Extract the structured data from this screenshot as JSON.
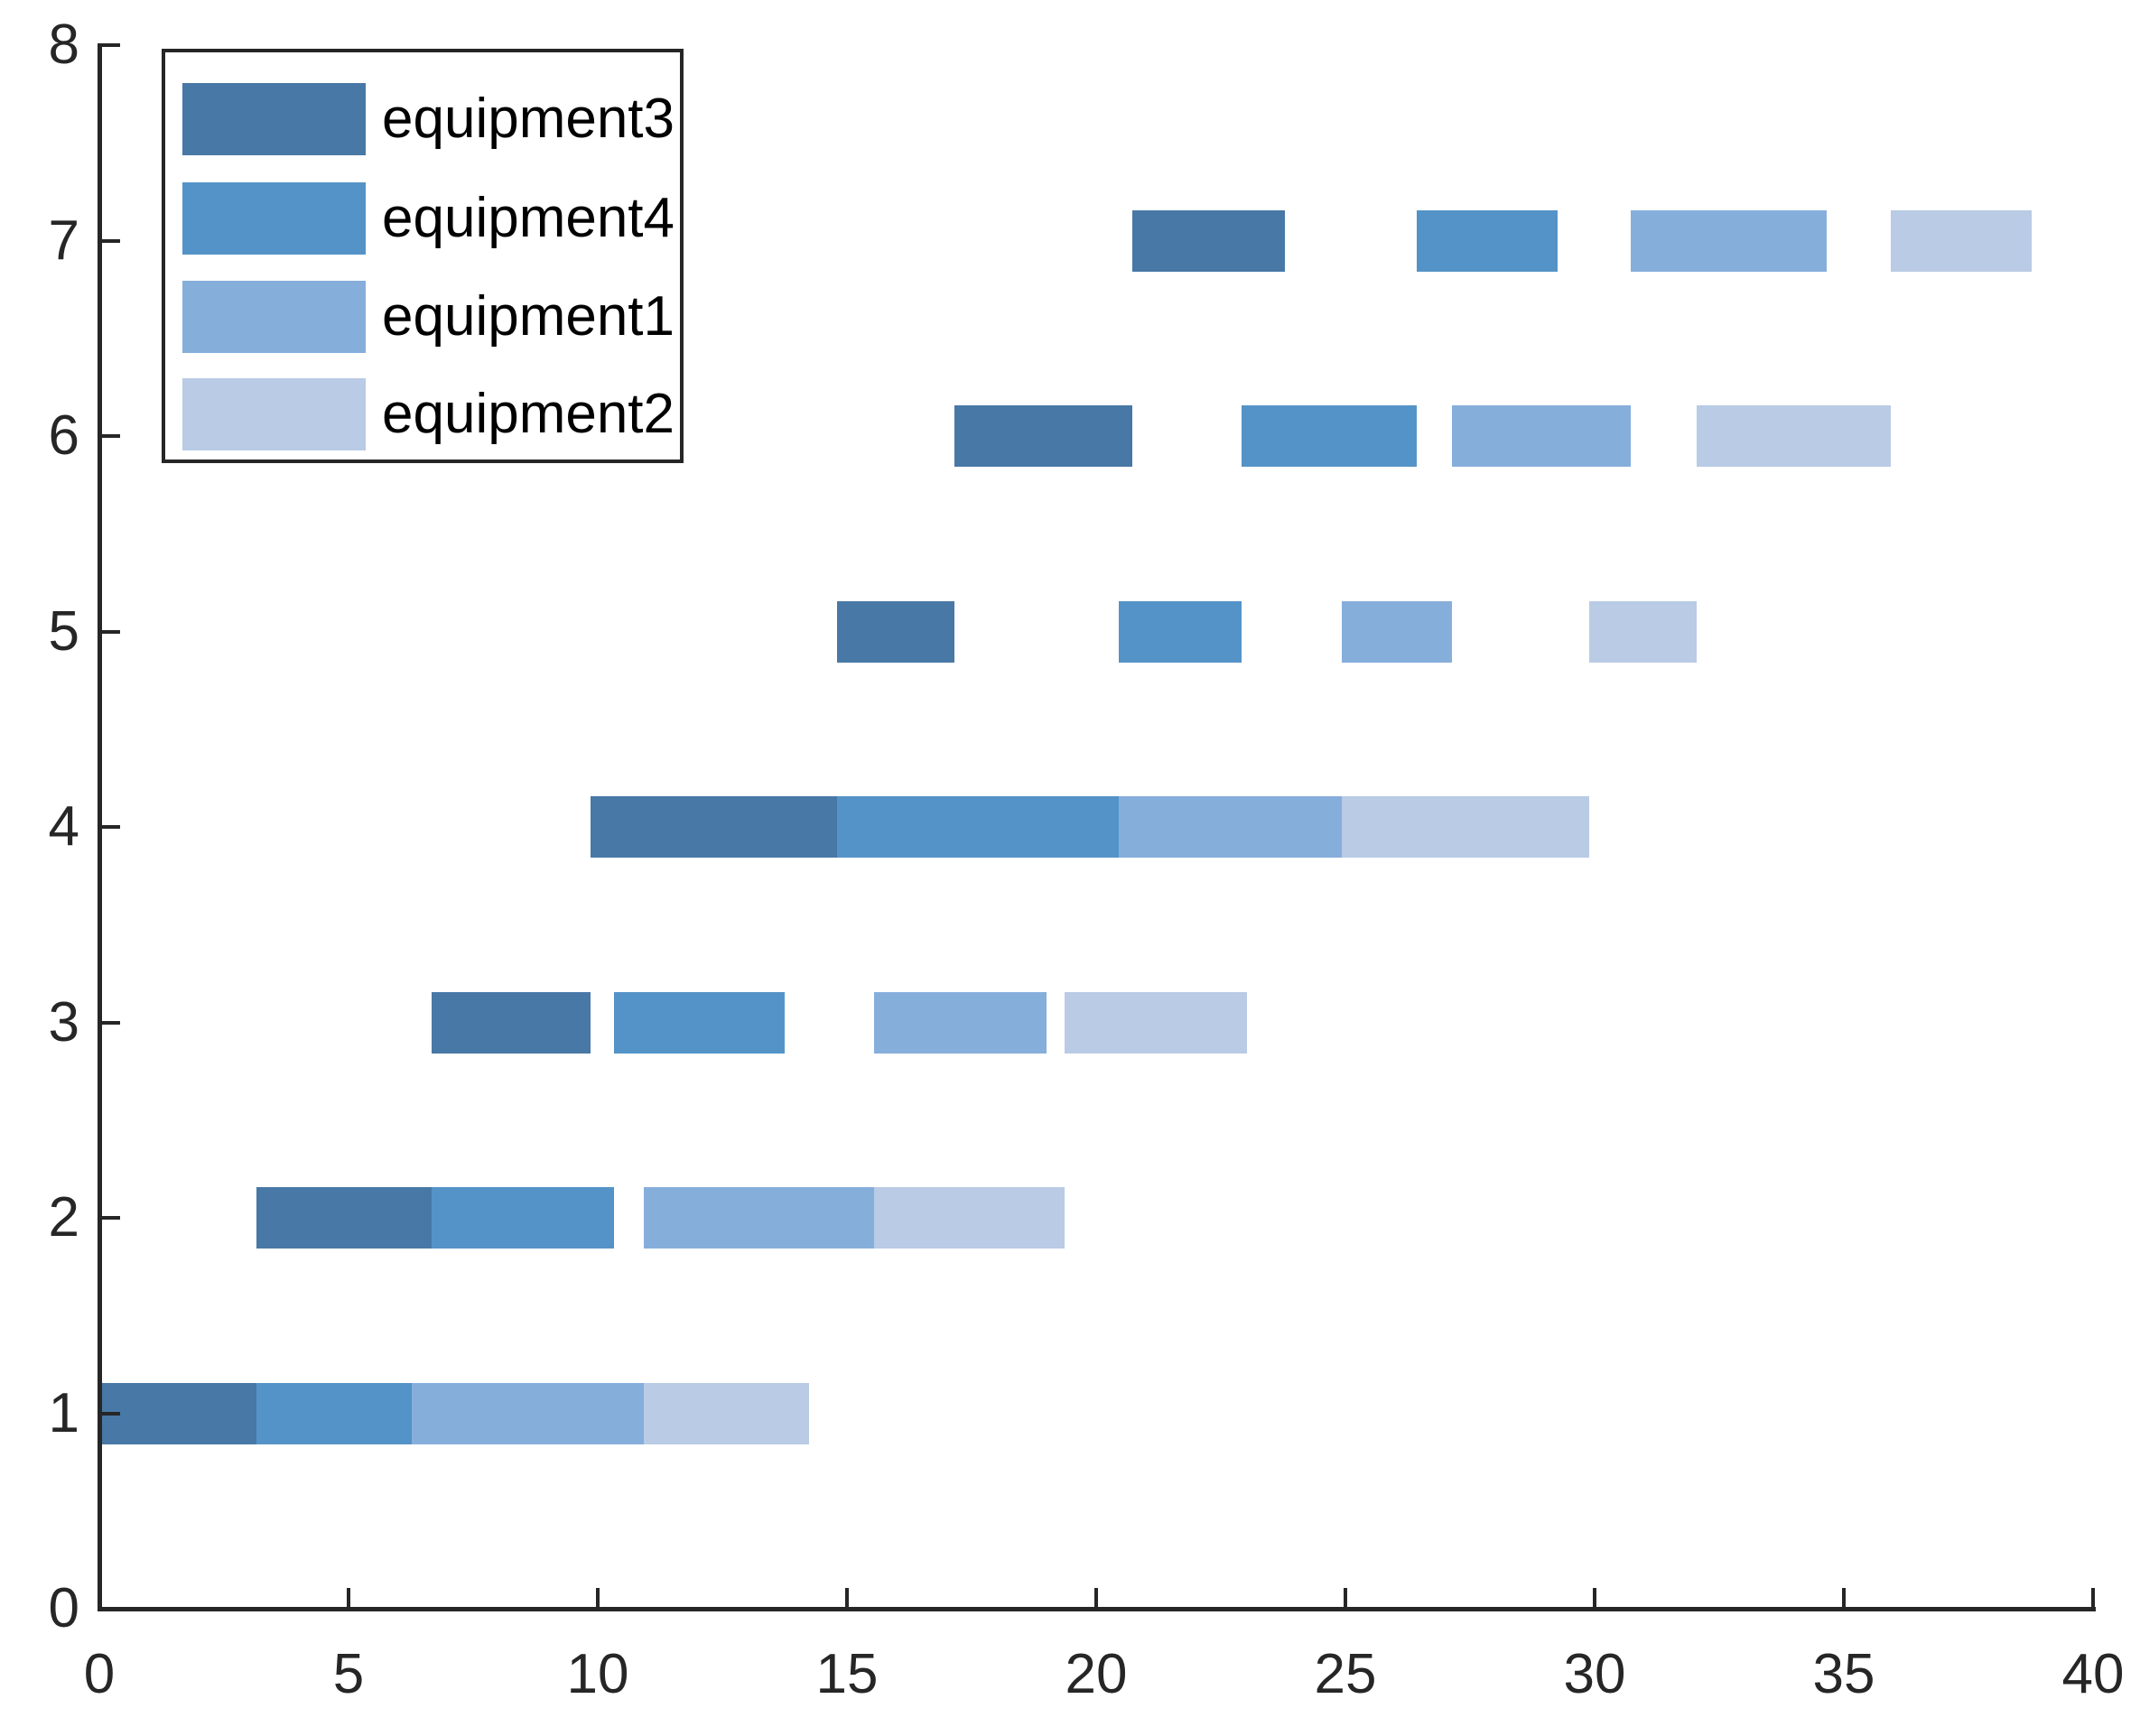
{
  "figure": {
    "background": "#ffffff"
  },
  "axes": {
    "line_color": "#262626",
    "tick_label_color": "#262626",
    "x": {
      "min": 0,
      "max": 40,
      "ticks": [
        "0",
        "5",
        "10",
        "15",
        "20",
        "25",
        "30",
        "35",
        "40"
      ]
    },
    "y": {
      "min": 0,
      "max": 8,
      "ticks": [
        "0",
        "1",
        "2",
        "3",
        "4",
        "5",
        "6",
        "7",
        "8"
      ]
    }
  },
  "legend": {
    "border_color": "#262626",
    "entries": [
      {
        "label": "equipment3",
        "color": "#4878A6"
      },
      {
        "label": "equipment4",
        "color": "#5493C8"
      },
      {
        "label": "equipment1",
        "color": "#86AEDB"
      },
      {
        "label": "equipment2",
        "color": "#B9CBE5"
      }
    ]
  },
  "chart_data": {
    "type": "gantt",
    "title": "",
    "xlabel": "",
    "ylabel": "",
    "x_axis": {
      "min": 0,
      "max": 40,
      "tick_step": 5
    },
    "y_axis": {
      "min": 0,
      "max": 8,
      "tick_step": 1
    },
    "grid": false,
    "legend_position": "top-left-inside",
    "bar_height_units": 0.31,
    "rows_meaning": "job index 1-7 on y-axis",
    "segment_format": [
      "job_y",
      "start_x",
      "end_x"
    ],
    "series": [
      {
        "name": "equipment3",
        "color": "#4878A6",
        "segments": [
          [
            1,
            0,
            3.16
          ],
          [
            2,
            3.16,
            6.66
          ],
          [
            3,
            6.66,
            9.86
          ],
          [
            4,
            9.86,
            14.8
          ],
          [
            5,
            14.8,
            17.15
          ],
          [
            6,
            17.15,
            20.73
          ],
          [
            7,
            20.73,
            23.79
          ]
        ]
      },
      {
        "name": "equipment4",
        "color": "#5493C8",
        "segments": [
          [
            1,
            3.16,
            6.27
          ],
          [
            2,
            6.66,
            10.33
          ],
          [
            3,
            10.33,
            13.75
          ],
          [
            4,
            14.8,
            20.45
          ],
          [
            5,
            20.45,
            22.92
          ],
          [
            6,
            22.92,
            26.43
          ],
          [
            7,
            26.43,
            29.26
          ]
        ]
      },
      {
        "name": "equipment1",
        "color": "#86AEDB",
        "segments": [
          [
            1,
            6.27,
            10.93
          ],
          [
            2,
            10.93,
            15.54
          ],
          [
            3,
            15.54,
            19.0
          ],
          [
            4,
            20.45,
            24.92
          ],
          [
            5,
            24.92,
            27.13
          ],
          [
            6,
            27.13,
            30.72
          ],
          [
            7,
            30.72,
            34.66
          ]
        ]
      },
      {
        "name": "equipment2",
        "color": "#B9CBE5",
        "segments": [
          [
            1,
            10.93,
            14.24
          ],
          [
            2,
            15.54,
            19.37
          ],
          [
            3,
            19.37,
            23.02
          ],
          [
            4,
            24.92,
            29.89
          ],
          [
            5,
            29.89,
            32.04
          ],
          [
            6,
            32.04,
            35.94
          ],
          [
            7,
            35.94,
            38.76
          ]
        ]
      }
    ]
  }
}
